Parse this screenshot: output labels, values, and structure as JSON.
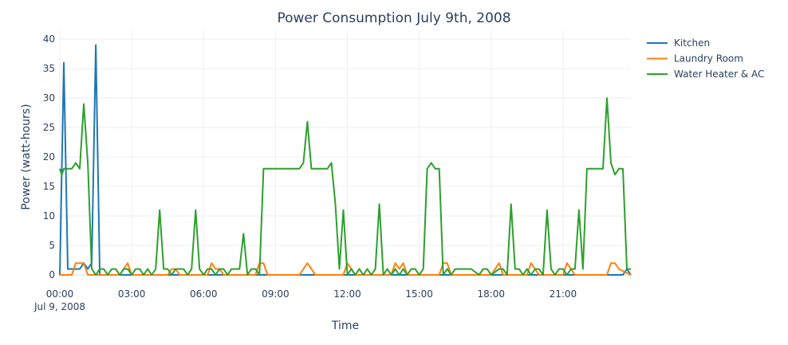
{
  "chart_data": {
    "type": "line",
    "title": "Power Consumption July 9th, 2008",
    "xlabel": "Time",
    "ylabel": "Power (watt-hours)",
    "x_unit": "hours since 00:00, Jul 9, 2008",
    "xlim": [
      0,
      23.833
    ],
    "ylim": [
      0,
      41.5
    ],
    "grid": true,
    "legend_position": "top-right",
    "x_ticks": [
      {
        "value": 0,
        "label": "00:00",
        "sublabel": "Jul 9, 2008"
      },
      {
        "value": 3,
        "label": "03:00"
      },
      {
        "value": 6,
        "label": "06:00"
      },
      {
        "value": 9,
        "label": "09:00"
      },
      {
        "value": 12,
        "label": "12:00"
      },
      {
        "value": 15,
        "label": "15:00"
      },
      {
        "value": 18,
        "label": "18:00"
      },
      {
        "value": 21,
        "label": "21:00"
      }
    ],
    "y_ticks": [
      0,
      5,
      10,
      15,
      20,
      25,
      30,
      35,
      40
    ],
    "series": [
      {
        "name": "Kitchen",
        "color": "#1f77b4",
        "x": [
          0,
          0.167,
          0.333,
          0.5,
          0.667,
          0.833,
          1.0,
          1.167,
          1.333,
          1.5,
          1.667,
          1.833,
          2.0,
          23.5,
          23.667,
          23.833
        ],
        "y": [
          0,
          36,
          1,
          1,
          1,
          1,
          2,
          1,
          2,
          39,
          0,
          0,
          0,
          0,
          1,
          0
        ]
      },
      {
        "name": "Laundry Room",
        "color": "#ff7f0e",
        "x": [
          0,
          0.5,
          0.667,
          0.833,
          1.0,
          1.167,
          2.5,
          2.833,
          3.0,
          4.5,
          4.667,
          4.833,
          5.0,
          6.167,
          6.333,
          6.5,
          6.667,
          6.833,
          7.0,
          8.167,
          8.333,
          8.5,
          8.667,
          10.0,
          10.333,
          10.667,
          11.833,
          12.0,
          12.167,
          12.333,
          13.833,
          14.0,
          14.167,
          14.333,
          14.5,
          15.833,
          16.0,
          16.167,
          16.333,
          18.0,
          18.167,
          18.333,
          18.5,
          19.5,
          19.667,
          19.833,
          20.0,
          21.0,
          21.167,
          21.333,
          21.5,
          22.833,
          23.0,
          23.167,
          23.333,
          23.833
        ],
        "y": [
          0,
          0,
          2,
          2,
          2,
          0,
          0,
          2,
          0,
          0,
          1,
          1,
          0,
          0,
          2,
          1,
          1,
          0,
          0,
          0,
          2,
          2,
          0,
          0,
          2,
          0,
          0,
          2,
          1,
          0,
          0,
          2,
          1,
          2,
          0,
          0,
          2,
          2,
          0,
          0,
          1,
          2,
          0,
          0,
          2,
          1,
          0,
          0,
          2,
          1,
          0,
          0,
          2,
          2,
          1,
          0
        ]
      },
      {
        "name": "Water Heater & AC",
        "color": "#2ca02c",
        "x": [
          0,
          0.083,
          0.167,
          0.333,
          0.5,
          0.667,
          0.833,
          1.0,
          1.167,
          1.333,
          1.5,
          1.667,
          1.833,
          2.0,
          2.167,
          2.333,
          2.5,
          2.667,
          2.833,
          3.0,
          3.167,
          3.333,
          3.5,
          3.667,
          3.833,
          4.0,
          4.167,
          4.333,
          4.5,
          4.667,
          4.833,
          5.0,
          5.167,
          5.333,
          5.5,
          5.667,
          5.833,
          6.0,
          6.167,
          6.333,
          6.5,
          6.667,
          6.833,
          7.0,
          7.167,
          7.333,
          7.5,
          7.667,
          7.833,
          8.0,
          8.167,
          8.333,
          8.5,
          8.667,
          8.833,
          9.0,
          9.5,
          10.0,
          10.167,
          10.333,
          10.5,
          10.667,
          11.0,
          11.167,
          11.333,
          11.5,
          11.667,
          11.833,
          12.0,
          12.167,
          12.333,
          12.5,
          12.667,
          12.833,
          13.0,
          13.167,
          13.333,
          13.5,
          13.667,
          13.833,
          14.0,
          14.167,
          14.333,
          14.5,
          14.667,
          14.833,
          15.0,
          15.167,
          15.333,
          15.5,
          15.667,
          15.833,
          16.0,
          16.167,
          16.333,
          16.5,
          16.833,
          17.167,
          17.5,
          17.667,
          17.833,
          18.0,
          18.333,
          18.5,
          18.667,
          18.833,
          19.0,
          19.167,
          19.333,
          19.5,
          19.667,
          19.833,
          20.0,
          20.167,
          20.333,
          20.5,
          20.667,
          20.833,
          21.0,
          21.167,
          21.333,
          21.5,
          21.667,
          21.833,
          22.0,
          22.167,
          22.333,
          22.5,
          22.667,
          22.833,
          23.0,
          23.167,
          23.333,
          23.5,
          23.667,
          23.833
        ],
        "y": [
          18,
          17,
          18,
          18,
          18,
          19,
          18,
          29,
          19,
          1,
          0,
          1,
          1,
          0,
          1,
          1,
          0,
          1,
          1,
          0,
          1,
          1,
          0,
          1,
          0,
          1,
          11,
          1,
          1,
          0,
          1,
          1,
          1,
          0,
          1,
          11,
          1,
          0,
          1,
          1,
          0,
          1,
          1,
          0,
          1,
          1,
          1,
          7,
          0,
          1,
          1,
          0,
          18,
          18,
          18,
          18,
          18,
          18,
          19,
          26,
          18,
          18,
          18,
          18,
          19,
          12,
          1,
          11,
          0,
          1,
          0,
          1,
          0,
          1,
          0,
          1,
          12,
          0,
          1,
          0,
          1,
          0,
          1,
          0,
          1,
          1,
          0,
          1,
          18,
          19,
          18,
          18,
          0,
          1,
          0,
          1,
          1,
          1,
          0,
          1,
          1,
          0,
          1,
          1,
          0,
          12,
          1,
          1,
          0,
          1,
          0,
          1,
          1,
          0,
          11,
          1,
          0,
          1,
          1,
          0,
          1,
          1,
          11,
          1,
          18,
          18,
          18,
          18,
          18,
          30,
          19,
          17,
          18,
          18,
          1,
          1
        ]
      }
    ]
  }
}
